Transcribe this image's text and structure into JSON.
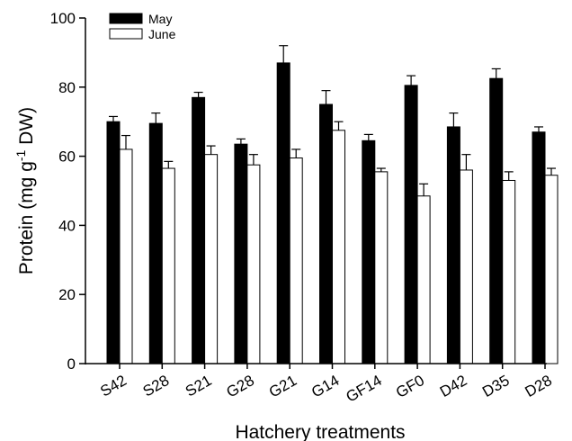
{
  "chart_data": {
    "type": "bar",
    "categories": [
      "S42",
      "S28",
      "S21",
      "G28",
      "G21",
      "G14",
      "GF14",
      "GF0",
      "D42",
      "D35",
      "D28"
    ],
    "series": [
      {
        "name": "May",
        "color": "#000000",
        "values": [
          70,
          69.5,
          77,
          63.5,
          87,
          75,
          64.5,
          80.5,
          68.5,
          82.5,
          67
        ],
        "errors": [
          1.5,
          3,
          1.5,
          1.5,
          5,
          4,
          1.8,
          2.8,
          4,
          2.8,
          1.5
        ]
      },
      {
        "name": "June",
        "color": "#ffffff",
        "values": [
          62,
          56.5,
          60.5,
          57.5,
          59.5,
          67.5,
          55.5,
          48.5,
          56,
          53,
          54.5
        ],
        "errors": [
          4,
          2,
          2.5,
          3,
          2.5,
          2.5,
          1,
          3.5,
          4.5,
          2.5,
          2
        ]
      }
    ],
    "xlabel": "Hatchery treatments",
    "ylabel": {
      "prefix": "Protein (mg g",
      "superscript": "-1",
      "suffix": " DW)"
    },
    "ylim": [
      0,
      100
    ],
    "yticks": [
      0,
      20,
      40,
      60,
      80,
      100
    ],
    "grid": false,
    "legend_position": "top-left"
  }
}
